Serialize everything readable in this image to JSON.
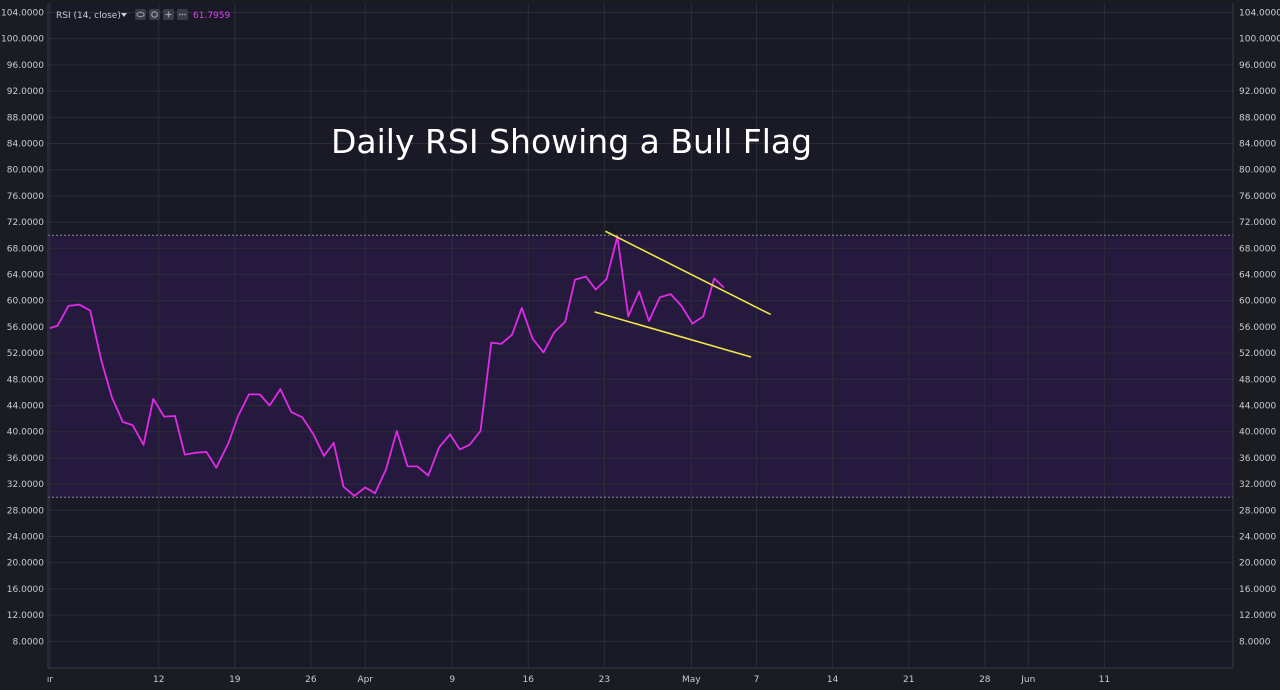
{
  "indicator": {
    "label": "RSI (14, close)",
    "dropdown_icon": "caret-down-icon",
    "controls": [
      "eye-icon",
      "settings-icon",
      "add-icon",
      "more-icon"
    ],
    "value": "61.7959",
    "value_color": "#e040fb"
  },
  "annotation": {
    "text": "Daily RSI Showing a Bull Flag",
    "color": "#ffffff"
  },
  "colors": {
    "background": "#1b1c22",
    "plot_background": "#191a26",
    "band_fill": "#2a1b45",
    "rsi_line": "#e02be8",
    "trend_lines": "#f1e44a",
    "grid": "#2c2d3a"
  },
  "chart_data": {
    "type": "line",
    "title": "",
    "y_range": [
      0,
      104
    ],
    "y_ticks": [
      "104.0000",
      "100.0000",
      "96.0000",
      "92.0000",
      "88.0000",
      "84.0000",
      "80.0000",
      "76.0000",
      "72.0000",
      "68.0000",
      "64.0000",
      "60.0000",
      "56.0000",
      "52.0000",
      "48.0000",
      "44.0000",
      "40.0000",
      "36.0000",
      "32.0000",
      "28.0000",
      "24.0000",
      "20.0000",
      "16.0000",
      "12.0000",
      "8.0000"
    ],
    "x_range": [
      0,
      98
    ],
    "x_ticks": [
      {
        "label": "ır",
        "x": 0
      },
      {
        "label": "12",
        "x": 10
      },
      {
        "label": "19",
        "x": 17
      },
      {
        "label": "26",
        "x": 24
      },
      {
        "label": "Apr",
        "x": 29
      },
      {
        "label": "9",
        "x": 37
      },
      {
        "label": "16",
        "x": 44
      },
      {
        "label": "23",
        "x": 51
      },
      {
        "label": "May",
        "x": 59
      },
      {
        "label": "7",
        "x": 65
      },
      {
        "label": "14",
        "x": 72
      },
      {
        "label": "21",
        "x": 79
      },
      {
        "label": "28",
        "x": 86
      },
      {
        "label": "Jun",
        "x": 90
      },
      {
        "label": "11",
        "x": 97
      }
    ],
    "bands": [
      {
        "name": "overbought",
        "value": 70
      },
      {
        "name": "oversold",
        "value": 30
      }
    ],
    "series": [
      {
        "values": [
          [
            0,
            55.8
          ],
          [
            0.7,
            56.2
          ],
          [
            1.7,
            59.2
          ],
          [
            2.7,
            59.4
          ],
          [
            3.7,
            58.5
          ],
          [
            4.7,
            51
          ],
          [
            5.7,
            45.2
          ],
          [
            6.7,
            41.5
          ],
          [
            7.6,
            41
          ],
          [
            8.6,
            38
          ],
          [
            9.5,
            45
          ],
          [
            10.5,
            42.3
          ],
          [
            11.5,
            42.4
          ],
          [
            12.4,
            36.5
          ],
          [
            13.4,
            36.8
          ],
          [
            14.4,
            36.9
          ],
          [
            15.3,
            34.5
          ],
          [
            16.4,
            38.2
          ],
          [
            17.3,
            42.4
          ],
          [
            18.3,
            45.7
          ],
          [
            19.3,
            45.7
          ],
          [
            20.2,
            44
          ],
          [
            21.2,
            46.5
          ],
          [
            22.2,
            43
          ],
          [
            23.2,
            42.2
          ],
          [
            24.2,
            39.7
          ],
          [
            25.2,
            36.3
          ],
          [
            26.1,
            38.3
          ],
          [
            27,
            31.6
          ],
          [
            28,
            30.2
          ],
          [
            29,
            31.5
          ],
          [
            29.9,
            30.6
          ],
          [
            30.9,
            34.2
          ],
          [
            31.9,
            40.1
          ],
          [
            32.9,
            34.7
          ],
          [
            33.8,
            34.7
          ],
          [
            34.8,
            33.3
          ],
          [
            35.8,
            37.6
          ],
          [
            36.8,
            39.6
          ],
          [
            37.7,
            37.3
          ],
          [
            38.6,
            38
          ],
          [
            39.6,
            40.1
          ],
          [
            40.6,
            53.6
          ],
          [
            41.5,
            53.4
          ],
          [
            42.5,
            54.8
          ],
          [
            43.4,
            58.9
          ],
          [
            44.4,
            54.2
          ],
          [
            45.4,
            52.1
          ],
          [
            46.4,
            55.2
          ],
          [
            47.4,
            56.8
          ],
          [
            48.3,
            63.2
          ],
          [
            49.3,
            63.7
          ],
          [
            50.2,
            61.7
          ],
          [
            51.2,
            63.3
          ],
          [
            52.2,
            69.8
          ],
          [
            53.2,
            57.6
          ],
          [
            54.2,
            61.4
          ],
          [
            55.1,
            56.9
          ],
          [
            56.1,
            60.5
          ],
          [
            57.1,
            61
          ],
          [
            58.1,
            59.2
          ],
          [
            59.1,
            56.5
          ],
          [
            60.1,
            57.6
          ],
          [
            61.1,
            63.4
          ],
          [
            62,
            62
          ]
        ]
      }
    ],
    "annotation_lines": [
      {
        "name": "upper-trend-line",
        "from": [
          51.1,
          70.6
        ],
        "to": [
          66.3,
          57.9
        ]
      },
      {
        "name": "lower-trend-line",
        "from": [
          50.1,
          58.3
        ],
        "to": [
          64.5,
          51.4
        ]
      }
    ]
  }
}
